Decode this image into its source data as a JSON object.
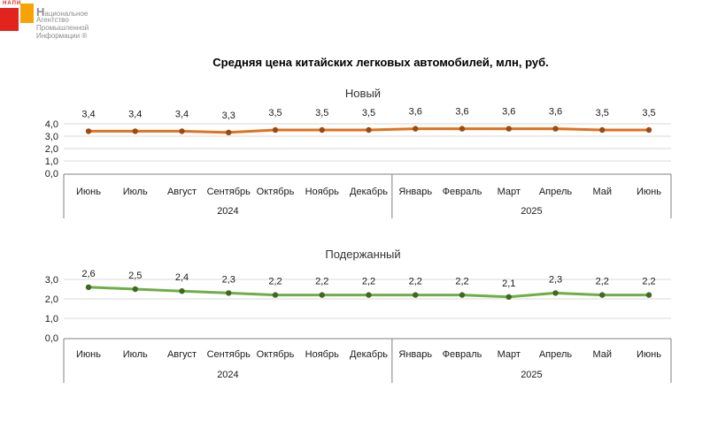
{
  "logo": {
    "brand": "НАПИ",
    "lines": [
      "Национальное",
      "Агентство",
      "Промышленной",
      "Информации ®"
    ],
    "red": "#e3231d",
    "orange": "#f7a205"
  },
  "title": "Средняя цена китайских легковых автомобилей, млн, руб.",
  "chart_data": [
    {
      "type": "line",
      "title": "Новый",
      "categories": [
        "Июнь",
        "Июль",
        "Август",
        "Сентябрь",
        "Октябрь",
        "Ноябрь",
        "Декабрь",
        "Январь",
        "Февраль",
        "Март",
        "Апрель",
        "Май",
        "Июнь"
      ],
      "year_groups": [
        {
          "label": "2024",
          "count": 7
        },
        {
          "label": "2025",
          "count": 6
        }
      ],
      "values": [
        3.4,
        3.4,
        3.4,
        3.3,
        3.5,
        3.5,
        3.5,
        3.6,
        3.6,
        3.6,
        3.6,
        3.5,
        3.5
      ],
      "labels": [
        "3,4",
        "3,4",
        "3,4",
        "3,3",
        "3,5",
        "3,5",
        "3,5",
        "3,6",
        "3,6",
        "3,6",
        "3,6",
        "3,5",
        "3,5"
      ],
      "ylim": [
        0,
        4
      ],
      "ytick_labels": [
        "0,0",
        "1,0",
        "2,0",
        "3,0",
        "4,0"
      ],
      "grid": true,
      "legend": "none",
      "line_color": "#e2711d",
      "marker_color": "#9a4a12"
    },
    {
      "type": "line",
      "title": "Подержанный",
      "categories": [
        "Июнь",
        "Июль",
        "Август",
        "Сентябрь",
        "Октябрь",
        "Ноябрь",
        "Декабрь",
        "Январь",
        "Февраль",
        "Март",
        "Апрель",
        "Май",
        "Июнь"
      ],
      "year_groups": [
        {
          "label": "2024",
          "count": 7
        },
        {
          "label": "2025",
          "count": 6
        }
      ],
      "values": [
        2.6,
        2.5,
        2.4,
        2.3,
        2.2,
        2.2,
        2.2,
        2.2,
        2.2,
        2.1,
        2.3,
        2.2,
        2.2
      ],
      "labels": [
        "2,6",
        "2,5",
        "2,4",
        "2,3",
        "2,2",
        "2,2",
        "2,2",
        "2,2",
        "2,2",
        "2,1",
        "2,3",
        "2,2",
        "2,2"
      ],
      "ylim": [
        0,
        3
      ],
      "ytick_labels": [
        "0,0",
        "1,0",
        "2,0",
        "3,0"
      ],
      "grid": true,
      "legend": "none",
      "line_color": "#70ad47",
      "marker_color": "#3e691f"
    }
  ],
  "style": {
    "grid_color": "#d9d9d9",
    "axis_box_color": "#808080",
    "text_color": "#1a1a1a",
    "chart_title_color": "#333333"
  }
}
